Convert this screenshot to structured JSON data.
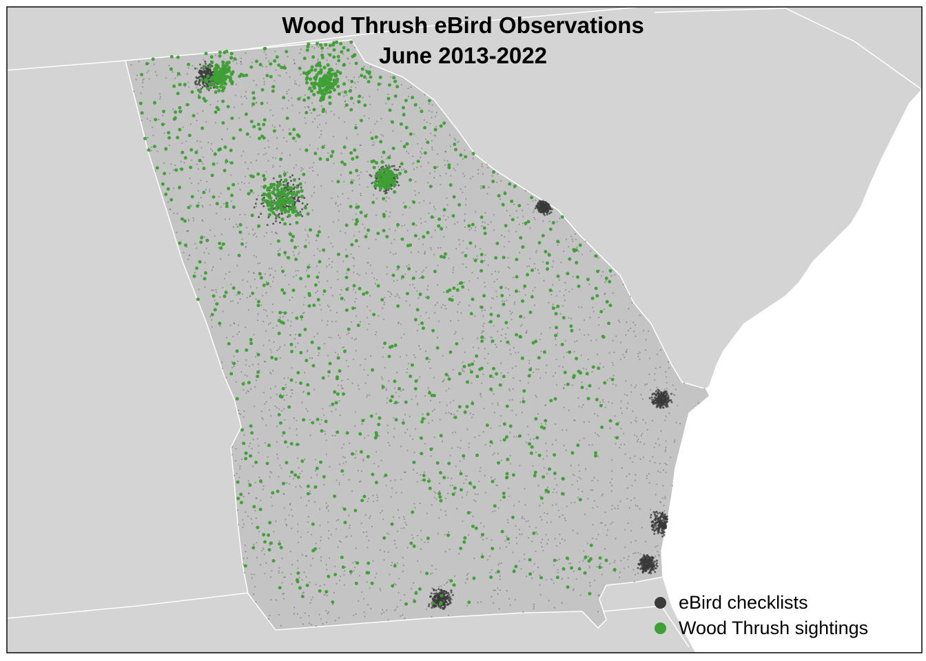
{
  "map": {
    "title_line_1": "Wood Thrush eBird Observations",
    "title_line_2": "June 2013-2022",
    "colors": {
      "ocean": "#ffffff",
      "neighbor_land": "#d4d4d4",
      "state_fill": "#c4c4c4",
      "borders": "#ffffff",
      "frame": "#000000",
      "checklist_points": "#3a3a3a",
      "sighting_points": "#3e9f35"
    },
    "legend": {
      "position": "bottom-right",
      "items": [
        {
          "label": "eBird checklists",
          "color": "#3a3a3a",
          "icon": "dark-grey-dot-icon"
        },
        {
          "label": "Wood Thrush sightings",
          "color": "#3e9f35",
          "icon": "green-dot-icon"
        }
      ]
    }
  }
}
